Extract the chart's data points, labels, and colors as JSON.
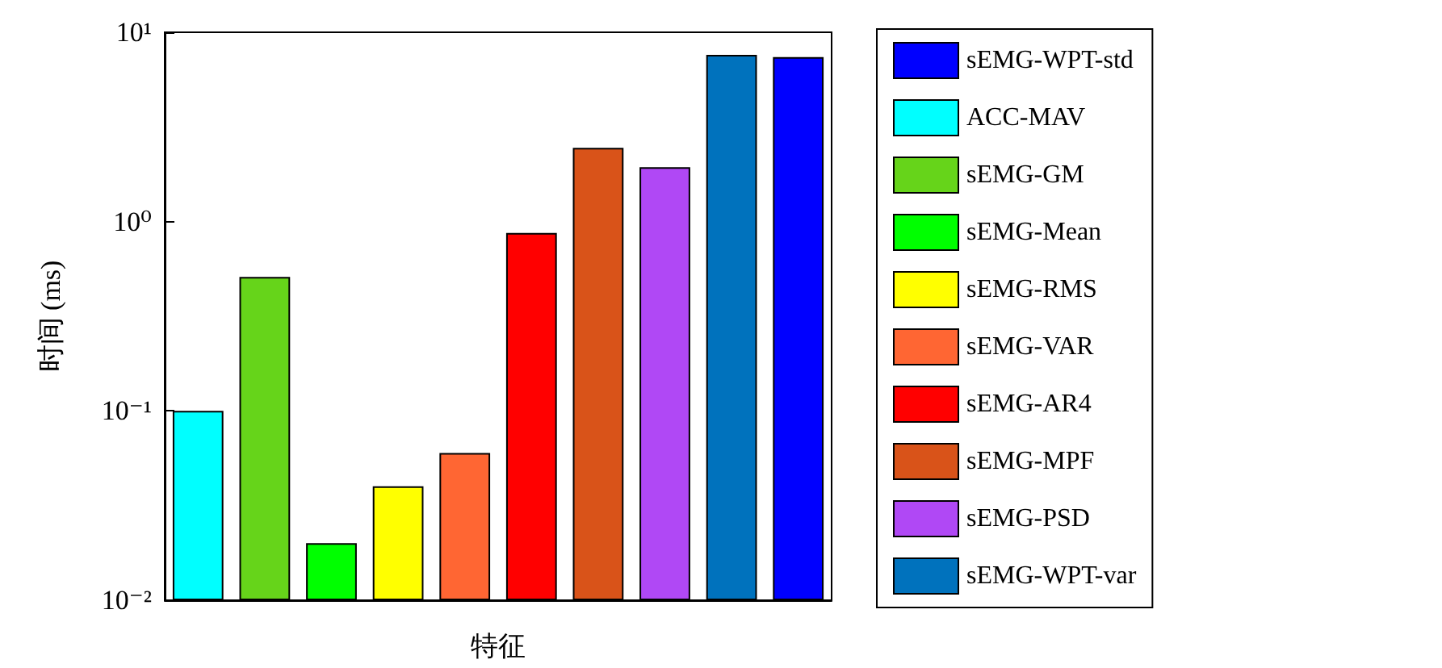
{
  "chart_data": {
    "type": "bar",
    "xlabel": "特征",
    "ylabel": "时间 (ms)",
    "log": true,
    "ylim": [
      0.01,
      10
    ],
    "yticks": [
      {
        "value": 0.01,
        "label": "10⁻²"
      },
      {
        "value": 0.1,
        "label": "10⁻¹"
      },
      {
        "value": 1,
        "label": "10⁰"
      },
      {
        "value": 10,
        "label": "10¹"
      }
    ],
    "categories": [
      null,
      null,
      null,
      null,
      null,
      null,
      null,
      null,
      null,
      null
    ],
    "legend": "right",
    "grid": false,
    "series": [
      {
        "name": "sEMG-WPT-std",
        "color": "#0000ff",
        "values": [
          null,
          null,
          null,
          null,
          null,
          null,
          null,
          null,
          null,
          7.4
        ]
      },
      {
        "name": "ACC-MAV",
        "color": "#00ffff",
        "values": [
          0.1,
          null,
          null,
          null,
          null,
          null,
          null,
          null,
          null,
          null
        ]
      },
      {
        "name": "sEMG-GM",
        "color": "#66d41a",
        "values": [
          null,
          0.51,
          null,
          null,
          null,
          null,
          null,
          null,
          null,
          null
        ]
      },
      {
        "name": "sEMG-Mean",
        "color": "#00ff00",
        "values": [
          null,
          null,
          0.02,
          null,
          null,
          null,
          null,
          null,
          null,
          null
        ]
      },
      {
        "name": "sEMG-RMS",
        "color": "#ffff00",
        "values": [
          null,
          null,
          null,
          0.04,
          null,
          null,
          null,
          null,
          null,
          null
        ]
      },
      {
        "name": "sEMG-VAR",
        "color": "#ff6633",
        "values": [
          null,
          null,
          null,
          null,
          0.06,
          null,
          null,
          null,
          null,
          null
        ]
      },
      {
        "name": "sEMG-AR4",
        "color": "#ff0000",
        "values": [
          null,
          null,
          null,
          null,
          null,
          0.87,
          null,
          null,
          null,
          null
        ]
      },
      {
        "name": "sEMG-MPF",
        "color": "#d95319",
        "values": [
          null,
          null,
          null,
          null,
          null,
          null,
          2.45,
          null,
          null,
          null
        ]
      },
      {
        "name": "sEMG-PSD",
        "color": "#b048f5",
        "values": [
          null,
          null,
          null,
          null,
          null,
          null,
          null,
          1.94,
          null,
          null
        ]
      },
      {
        "name": "sEMG-WPT-var",
        "color": "#0072bd",
        "values": [
          null,
          null,
          null,
          null,
          null,
          null,
          null,
          null,
          7.6,
          null
        ]
      }
    ]
  }
}
